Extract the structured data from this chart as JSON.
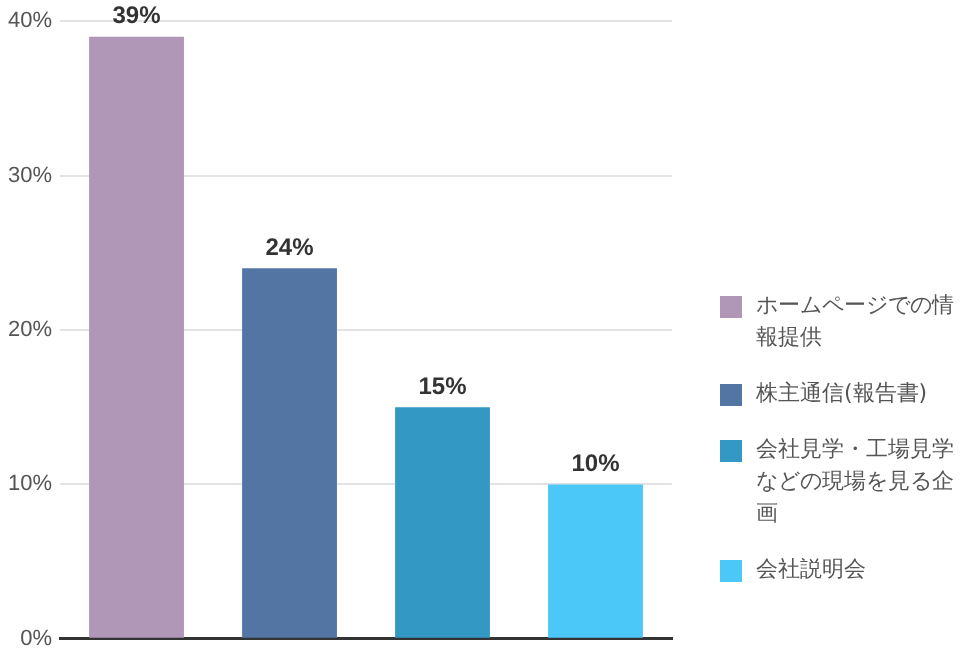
{
  "chart_data": {
    "type": "bar",
    "categories": [
      null,
      null,
      null,
      null
    ],
    "series": [
      {
        "name": "ホームページでの情報提供",
        "color": "#b097b7",
        "values": [
          39,
          null,
          null,
          null
        ],
        "value_labels": [
          "39%",
          null,
          null,
          null
        ]
      },
      {
        "name": "株主通信(報告書)",
        "color": "#5375a3",
        "values": [
          null,
          24,
          null,
          null
        ],
        "value_labels": [
          null,
          "24%",
          null,
          null
        ]
      },
      {
        "name": "会社見学・工場見学などの現場を見る企画",
        "color": "#3399c4",
        "values": [
          null,
          null,
          15,
          null
        ],
        "value_labels": [
          null,
          null,
          "15%",
          null
        ]
      },
      {
        "name": "会社説明会",
        "color": "#4cc8f8",
        "values": [
          null,
          null,
          null,
          10
        ],
        "value_labels": [
          null,
          null,
          null,
          "10%"
        ]
      }
    ],
    "ylim": [
      0,
      40
    ],
    "yticks": [
      {
        "value": 0,
        "label": "0%"
      },
      {
        "value": 10,
        "label": "10%"
      },
      {
        "value": 20,
        "label": "20%"
      },
      {
        "value": 30,
        "label": "30%"
      },
      {
        "value": 40,
        "label": "40%"
      }
    ],
    "grid": "y",
    "legend": "right",
    "tick_labels": "y"
  }
}
